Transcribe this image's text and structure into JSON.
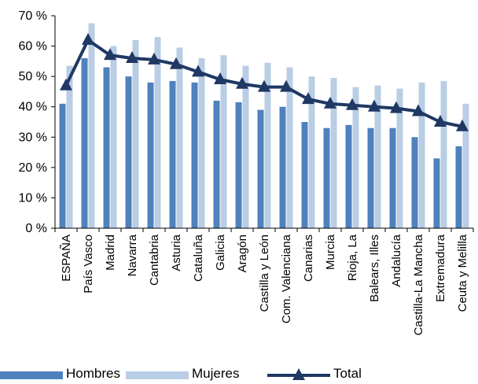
{
  "chart_data": {
    "type": "bar",
    "categories": [
      "ESPAÑA",
      "País Vasco",
      "Madrid",
      "Navarra",
      "Cantabria",
      "Asturia",
      "Cataluña",
      "Galicia",
      "Aragón",
      "Castilla y León",
      "Com. Valenciana",
      "Canarias",
      "Murcia",
      "Rioja, La",
      "Balears, Illes",
      "Andalucía",
      "Castilla-La Mancha",
      "Extremadura",
      "Ceuta y Melilla"
    ],
    "series": [
      {
        "name": "Hombres",
        "kind": "bar",
        "color": "#4f81bd",
        "values": [
          41,
          56,
          53,
          50,
          48,
          48.5,
          48,
          42,
          41.5,
          39,
          40,
          35,
          33,
          34,
          33,
          33,
          30,
          23,
          27
        ]
      },
      {
        "name": "Mujeres",
        "kind": "bar",
        "color": "#b9cde5",
        "values": [
          53.5,
          67.5,
          60,
          62,
          63,
          59.5,
          56,
          57,
          53.5,
          54.5,
          53,
          50,
          49.5,
          46.5,
          47,
          46,
          48,
          48.5,
          41
        ]
      },
      {
        "name": "Total",
        "kind": "line",
        "color": "#1f3864",
        "marker": "triangle",
        "values": [
          47,
          62,
          57,
          56,
          55.5,
          54,
          51.5,
          49,
          47.5,
          46.5,
          46.5,
          42.5,
          41,
          40.5,
          40,
          39.5,
          38.5,
          35,
          33.5
        ]
      }
    ],
    "ylim": [
      0,
      70
    ],
    "yticks": [
      "0 %",
      "10 %",
      "20 %",
      "30 %",
      "40 %",
      "50 %",
      "60 %",
      "70 %"
    ],
    "ytick_values": [
      0,
      10,
      20,
      30,
      40,
      50,
      60,
      70
    ],
    "grid": false,
    "legend_position": "bottom-left",
    "title": "",
    "xlabel": "",
    "ylabel": ""
  }
}
